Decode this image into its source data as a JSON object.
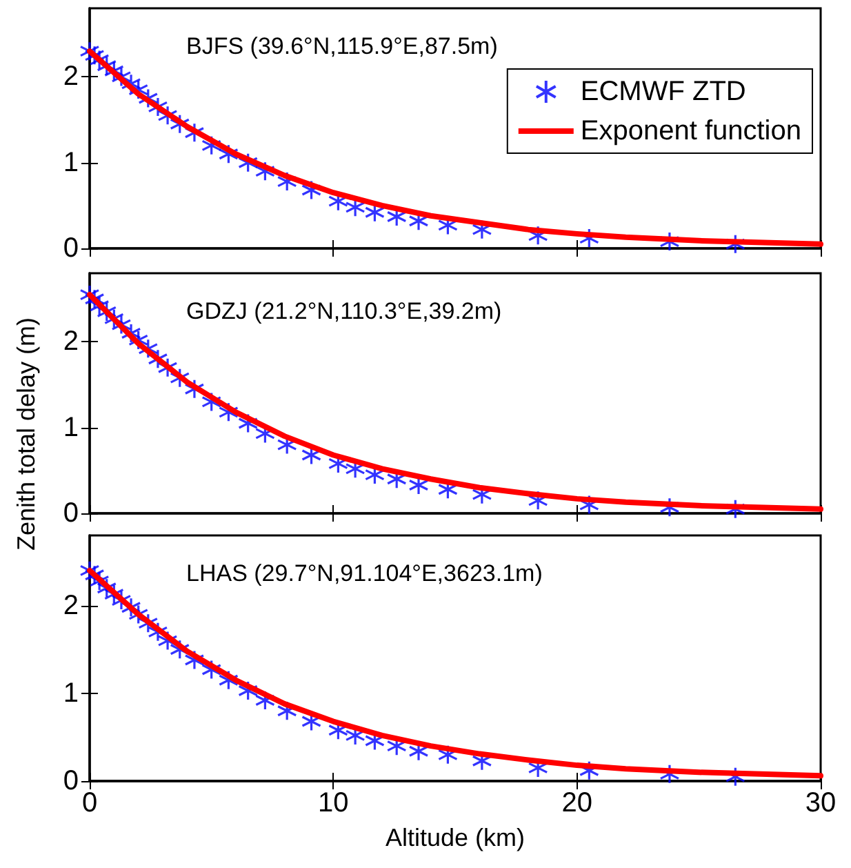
{
  "chart_data": [
    {
      "type": "scatter",
      "title": "BJFS (39.6°N,115.9°E,87.5m)",
      "legend": "top right",
      "tick_labels": "y",
      "grid": false,
      "xlim": [
        0,
        30
      ],
      "xticks": [
        0,
        10,
        20,
        30
      ],
      "ylim": [
        0,
        2.8
      ],
      "yticks": [
        0,
        1,
        2
      ],
      "series": [
        {
          "name": "ECMWF ZTD",
          "marker": "cross",
          "color": "#0000ff",
          "x": [
            0,
            0.2,
            0.4,
            0.7,
            1.0,
            1.3,
            1.7,
            2.0,
            2.4,
            2.8,
            3.2,
            3.7,
            4.3,
            5.0,
            5.7,
            6.5,
            7.2,
            8.1,
            9.1,
            10.2,
            10.9,
            11.7,
            12.6,
            13.5,
            14.7,
            16.1,
            18.4,
            20.5,
            23.8,
            26.5
          ],
          "values": [
            2.3,
            2.25,
            2.2,
            2.13,
            2.07,
            2.0,
            1.92,
            1.85,
            1.75,
            1.65,
            1.55,
            1.45,
            1.35,
            1.2,
            1.1,
            1.0,
            0.9,
            0.78,
            0.68,
            0.55,
            0.48,
            0.42,
            0.37,
            0.32,
            0.27,
            0.22,
            0.15,
            0.12,
            0.08,
            0.05
          ]
        },
        {
          "name": "Exponent function",
          "type": "line",
          "marker": "none",
          "line_style": "solid",
          "color": "#ff0000",
          "x": [
            0,
            2,
            4,
            6,
            8,
            10,
            12,
            14,
            16,
            18,
            20,
            22,
            25,
            30
          ],
          "values": [
            2.3,
            1.8,
            1.42,
            1.1,
            0.85,
            0.65,
            0.5,
            0.38,
            0.3,
            0.22,
            0.17,
            0.13,
            0.09,
            0.05
          ]
        }
      ]
    },
    {
      "type": "scatter",
      "title": "GDZJ (21.2°N,110.3°E,39.2m)",
      "ylabel": "Zenith total delay (m)",
      "tick_labels": "y",
      "grid": false,
      "xlim": [
        0,
        30
      ],
      "xticks": [
        0,
        10,
        20,
        30
      ],
      "ylim": [
        0,
        2.8
      ],
      "yticks": [
        0,
        1,
        2
      ],
      "series": [
        {
          "marker": "cross",
          "color": "#0000ff",
          "x": [
            0,
            0.2,
            0.4,
            0.7,
            1.0,
            1.3,
            1.7,
            2.0,
            2.4,
            2.8,
            3.2,
            3.7,
            4.3,
            5.0,
            5.7,
            6.5,
            7.2,
            8.1,
            9.1,
            10.2,
            10.9,
            11.7,
            12.6,
            13.5,
            14.7,
            16.1,
            18.4,
            20.5,
            23.8,
            26.5
          ],
          "values": [
            2.55,
            2.5,
            2.42,
            2.35,
            2.27,
            2.2,
            2.1,
            2.02,
            1.92,
            1.8,
            1.7,
            1.58,
            1.45,
            1.3,
            1.18,
            1.05,
            0.93,
            0.8,
            0.68,
            0.58,
            0.52,
            0.45,
            0.4,
            0.33,
            0.28,
            0.22,
            0.15,
            0.1,
            0.07,
            0.05
          ]
        },
        {
          "type": "line",
          "marker": "none",
          "line_style": "solid",
          "color": "#ff0000",
          "x": [
            0,
            2,
            4,
            6,
            8,
            10,
            12,
            14,
            16,
            18,
            20,
            22,
            25,
            30
          ],
          "values": [
            2.55,
            1.98,
            1.53,
            1.18,
            0.9,
            0.68,
            0.52,
            0.4,
            0.3,
            0.23,
            0.17,
            0.13,
            0.09,
            0.05
          ]
        }
      ]
    },
    {
      "type": "scatter",
      "title": "LHAS (29.7°N,91.104°E,3623.1m)",
      "xlabel": "Altitude (km)",
      "grid": false,
      "xlim": [
        0,
        30
      ],
      "xticks": [
        0,
        10,
        20,
        30
      ],
      "ylim": [
        0,
        2.8
      ],
      "yticks": [
        0,
        1,
        2
      ],
      "series": [
        {
          "marker": "cross",
          "color": "#0000ff",
          "x": [
            0,
            0.2,
            0.4,
            0.7,
            1.0,
            1.3,
            1.7,
            2.0,
            2.4,
            2.8,
            3.2,
            3.7,
            4.3,
            5.0,
            5.7,
            6.5,
            7.2,
            8.1,
            9.1,
            10.2,
            10.9,
            11.7,
            12.6,
            13.5,
            14.7,
            16.1,
            18.4,
            20.5,
            23.8,
            26.5
          ],
          "values": [
            2.4,
            2.35,
            2.28,
            2.2,
            2.13,
            2.06,
            1.98,
            1.9,
            1.8,
            1.7,
            1.6,
            1.5,
            1.38,
            1.27,
            1.15,
            1.03,
            0.92,
            0.8,
            0.68,
            0.58,
            0.52,
            0.46,
            0.4,
            0.34,
            0.3,
            0.23,
            0.15,
            0.12,
            0.08,
            0.05
          ]
        },
        {
          "type": "line",
          "marker": "none",
          "line_style": "solid",
          "color": "#ff0000",
          "x": [
            0,
            2,
            4,
            6,
            8,
            10,
            12,
            14,
            16,
            18,
            20,
            22,
            25,
            30
          ],
          "values": [
            2.4,
            1.9,
            1.48,
            1.15,
            0.88,
            0.68,
            0.52,
            0.4,
            0.31,
            0.24,
            0.18,
            0.14,
            0.1,
            0.06
          ]
        }
      ]
    }
  ]
}
